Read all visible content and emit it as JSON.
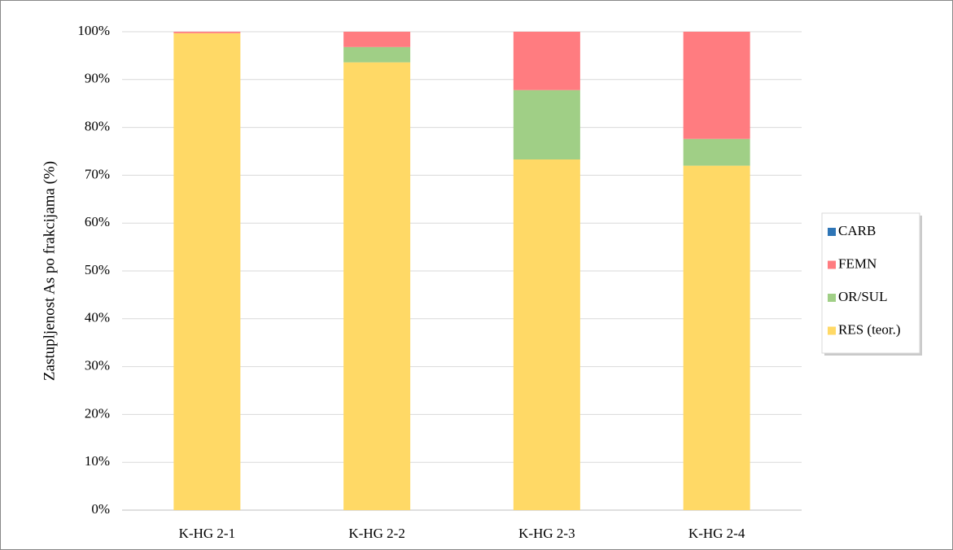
{
  "chart_data": {
    "type": "stacked_bar",
    "y_label": "Zastupljenost As po frakcijama (%)",
    "categories": [
      "K-HG 2-1",
      "K-HG 2-2",
      "K-HG 2-3",
      "K-HG 2-4"
    ],
    "series": [
      {
        "name": "RES (teor.)",
        "color": "#ffd966",
        "values": [
          99.7,
          93.6,
          73.3,
          72.0
        ]
      },
      {
        "name": "OR/SUL",
        "color": "#a0cf86",
        "values": [
          0,
          3.2,
          14.5,
          5.6
        ]
      },
      {
        "name": "FEMN",
        "color": "#ff7c80",
        "values": [
          0.3,
          3.2,
          12.2,
          22.4
        ]
      },
      {
        "name": "CARB",
        "color": "#2e75b6",
        "values": [
          0,
          0,
          0,
          0
        ]
      }
    ],
    "ylim": [
      0,
      100
    ],
    "yticks": [
      {
        "value": 0,
        "label": "0%"
      },
      {
        "value": 10,
        "label": "10%"
      },
      {
        "value": 20,
        "label": "20%"
      },
      {
        "value": 30,
        "label": "30%"
      },
      {
        "value": 40,
        "label": "40%"
      },
      {
        "value": 50,
        "label": "50%"
      },
      {
        "value": 60,
        "label": "60%"
      },
      {
        "value": 70,
        "label": "70%"
      },
      {
        "value": 80,
        "label": "80%"
      },
      {
        "value": 90,
        "label": "90%"
      },
      {
        "value": 100,
        "label": "100%"
      }
    ],
    "grid": true,
    "legend": "right"
  }
}
